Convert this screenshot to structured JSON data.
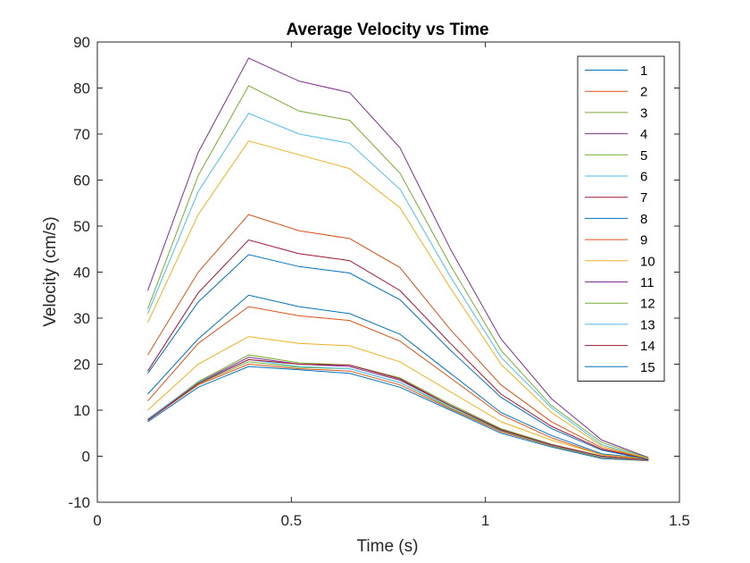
{
  "chart_data": {
    "type": "line",
    "title": "Average Velocity vs Time",
    "xlabel": "Time (s)",
    "ylabel": "Velocity (cm/s)",
    "xlim": [
      0,
      1.5
    ],
    "ylim": [
      -10,
      90
    ],
    "xticks": [
      0,
      0.5,
      1,
      1.5
    ],
    "xtick_labels": [
      "0",
      "0.5",
      "1",
      "1.5"
    ],
    "yticks": [
      -10,
      0,
      10,
      20,
      30,
      40,
      50,
      60,
      70,
      80,
      90
    ],
    "ytick_labels": [
      "-10",
      "0",
      "10",
      "20",
      "30",
      "40",
      "50",
      "60",
      "70",
      "80",
      "90"
    ],
    "grid": false,
    "legend_position": "top-right",
    "x": [
      0.13,
      0.26,
      0.39,
      0.52,
      0.65,
      0.78,
      0.91,
      1.04,
      1.17,
      1.3,
      1.42
    ],
    "series": [
      {
        "name": "1",
        "color": "#0072BD",
        "values": [
          7.5,
          15.0,
          19.5,
          18.8,
          18.0,
          15.0,
          10.0,
          5.0,
          2.0,
          -0.5,
          -1.0
        ]
      },
      {
        "name": "2",
        "color": "#D95319",
        "values": [
          7.8,
          15.5,
          20.0,
          19.0,
          18.5,
          15.5,
          10.3,
          5.3,
          2.2,
          -0.3,
          -1.0
        ]
      },
      {
        "name": "3",
        "color": "#77AC30",
        "values": [
          7.9,
          15.7,
          20.5,
          19.3,
          19.0,
          16.0,
          10.5,
          5.5,
          2.3,
          -0.2,
          -0.9
        ]
      },
      {
        "name": "4",
        "color": "#7E2F8E",
        "values": [
          8.0,
          16.0,
          21.5,
          20.0,
          19.5,
          16.5,
          11.0,
          5.8,
          2.5,
          0.0,
          -0.8
        ]
      },
      {
        "name": "5",
        "color": "#77AC30",
        "values": [
          8.0,
          16.2,
          22.0,
          20.3,
          19.8,
          17.0,
          11.3,
          6.0,
          2.6,
          0.0,
          -0.8
        ]
      },
      {
        "name": "6",
        "color": "#4DBEEE",
        "values": [
          8.1,
          16.0,
          21.0,
          19.5,
          19.0,
          16.0,
          10.8,
          5.6,
          2.4,
          -0.1,
          -0.9
        ]
      },
      {
        "name": "7",
        "color": "#A2142F",
        "values": [
          7.8,
          15.8,
          21.0,
          20.0,
          19.8,
          16.8,
          11.0,
          5.7,
          2.5,
          0.0,
          -0.8
        ]
      },
      {
        "name": "8",
        "color": "#0072BD",
        "values": [
          13.5,
          25.5,
          35.0,
          32.5,
          31.0,
          26.5,
          18.0,
          9.5,
          4.5,
          0.5,
          -0.5
        ]
      },
      {
        "name": "9",
        "color": "#D95319",
        "values": [
          12.0,
          24.5,
          32.5,
          30.5,
          29.5,
          25.0,
          17.0,
          9.0,
          4.0,
          0.3,
          -0.5
        ]
      },
      {
        "name": "10",
        "color": "#EDB120",
        "values": [
          10.0,
          20.0,
          26.0,
          24.5,
          24.0,
          20.5,
          14.0,
          7.5,
          3.5,
          0.3,
          -0.6
        ]
      },
      {
        "name": "11",
        "color": "#7E2F8E",
        "values": [
          36.0,
          66.0,
          86.5,
          81.5,
          79.0,
          67.0,
          45.0,
          25.5,
          12.5,
          3.5,
          -0.3
        ]
      },
      {
        "name": "12",
        "color": "#77AC30",
        "values": [
          32.0,
          61.0,
          80.5,
          75.0,
          73.0,
          61.5,
          41.5,
          23.0,
          11.0,
          3.0,
          -0.4
        ]
      },
      {
        "name": "13",
        "color": "#4DBEEE",
        "values": [
          31.0,
          57.5,
          74.5,
          70.0,
          68.0,
          58.0,
          39.0,
          21.5,
          10.5,
          2.5,
          -0.5
        ]
      },
      {
        "name": "14",
        "color": "#A2142F",
        "values": [
          18.5,
          35.5,
          47.0,
          44.0,
          42.5,
          36.0,
          24.5,
          13.5,
          6.5,
          1.5,
          -0.6
        ]
      },
      {
        "name": "15",
        "color": "#0072BD",
        "values": [
          18.0,
          33.5,
          43.8,
          41.2,
          39.8,
          34.0,
          23.0,
          12.8,
          6.0,
          1.3,
          -0.7
        ]
      },
      {
        "name": "",
        "color": "#D95319",
        "values": [
          22.0,
          40.0,
          52.5,
          49.0,
          47.3,
          41.0,
          27.5,
          15.5,
          7.5,
          1.8,
          -0.5
        ]
      },
      {
        "name": "",
        "color": "#EDB120",
        "values": [
          29.0,
          52.5,
          68.5,
          65.5,
          62.5,
          54.0,
          36.5,
          20.0,
          9.5,
          2.2,
          -0.5
        ]
      }
    ]
  }
}
